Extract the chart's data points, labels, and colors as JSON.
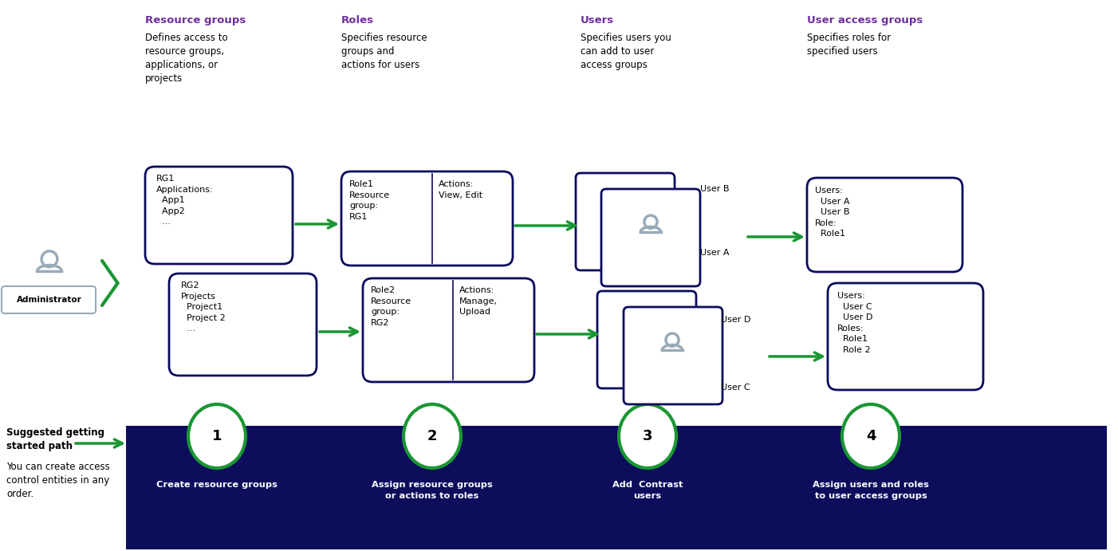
{
  "bg_color": "#ffffff",
  "dark_navy": "#0a0a5e",
  "green": "#1a9632",
  "purple": "#7030a0",
  "gray": "#8c9db5",
  "white": "#ffffff",
  "black": "#000000",
  "bottom_bg": "#0d0d5c",
  "col_headers": {
    "rg_title": "Resource groups",
    "rg_desc": "Defines access to\nresource groups,\napplications, or\nprojects",
    "roles_title": "Roles",
    "roles_desc": "Specifies resource\ngroups and\nactions for users",
    "users_title": "Users",
    "users_desc": "Specifies users you\ncan add to user\naccess groups",
    "uag_title": "User access groups",
    "uag_desc": "Specifies roles for\nspecified users"
  },
  "rg1_text": "RG1\nApplications:\n  App1\n  App2\n  ...",
  "rg2_text": "RG2\nProjects\n  Project1\n  Project 2\n  ...",
  "role1_left": "Role1\nResource\ngroup:\nRG1",
  "role1_right": "Actions:\nView, Edit",
  "role2_left": "Role2\nResource\ngroup:\nRG2",
  "role2_right": "Actions:\nManage,\nUpload",
  "uag1_text": "Users:\n  User A\n  User B\nRole:\n  Role1",
  "uag2_text": "Users:\n  User C\n  User D\nRoles:\n  Role1\n  Role 2",
  "user_b_label": "User B",
  "user_a_label": "User A",
  "user_d_label": "User D",
  "user_c_label": "User C",
  "bottom_steps": [
    {
      "num": "1",
      "label": "Create resource groups"
    },
    {
      "num": "2",
      "label": "Assign resource groups\nor actions to roles"
    },
    {
      "num": "3",
      "label": "Add  Contrast\nusers"
    },
    {
      "num": "4",
      "label": "Assign users and roles\nto user access groups"
    }
  ],
  "bottom_left_text1": "Suggested getting\nstarted path",
  "bottom_left_text2": "You can create access\ncontrol entities in any\norder.",
  "admin_label": "Administrator",
  "person_color": "#9aabb8"
}
